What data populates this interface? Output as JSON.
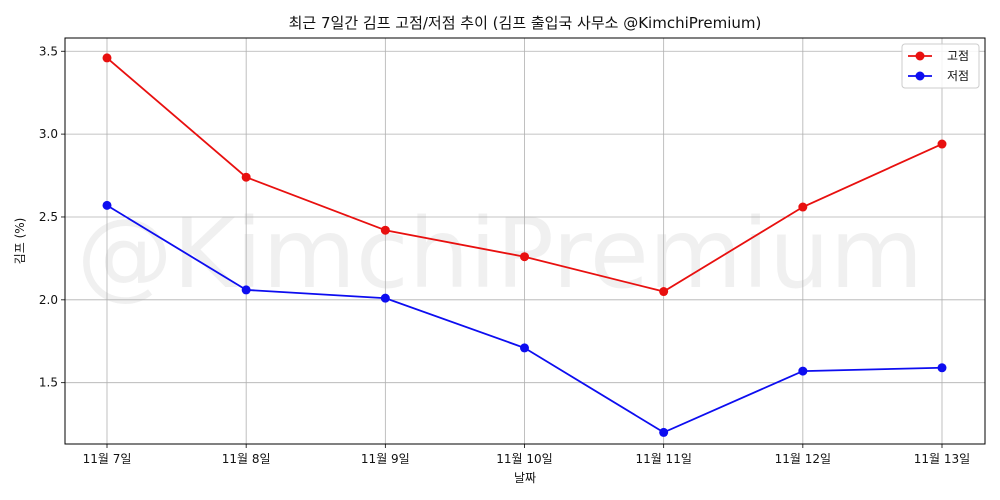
{
  "chart_data": {
    "type": "line",
    "title": "최근 7일간 김프 고점/저점 추이 (김프 출입국 사무소 @KimchiPremium)",
    "xlabel": "날짜",
    "ylabel": "김프 (%)",
    "categories": [
      "11월 7일",
      "11월 8일",
      "11월 9일",
      "11월 10일",
      "11월 11일",
      "11월 12일",
      "11월 13일"
    ],
    "series": [
      {
        "name": "고점",
        "color": "#e8100f",
        "values": [
          3.46,
          2.74,
          2.42,
          2.26,
          2.05,
          2.56,
          2.94
        ]
      },
      {
        "name": "저점",
        "color": "#0d0df0",
        "values": [
          2.57,
          2.06,
          2.01,
          1.71,
          1.2,
          1.57,
          1.59
        ]
      }
    ],
    "ylim": [
      1.13,
      3.58
    ],
    "yticks": [
      1.5,
      2.0,
      2.5,
      3.0,
      3.5
    ],
    "ytick_labels": [
      "1.5",
      "2.0",
      "2.5",
      "3.0",
      "3.5"
    ],
    "grid": true,
    "legend_position": "top-right",
    "watermark": "@KimchiPremium"
  }
}
